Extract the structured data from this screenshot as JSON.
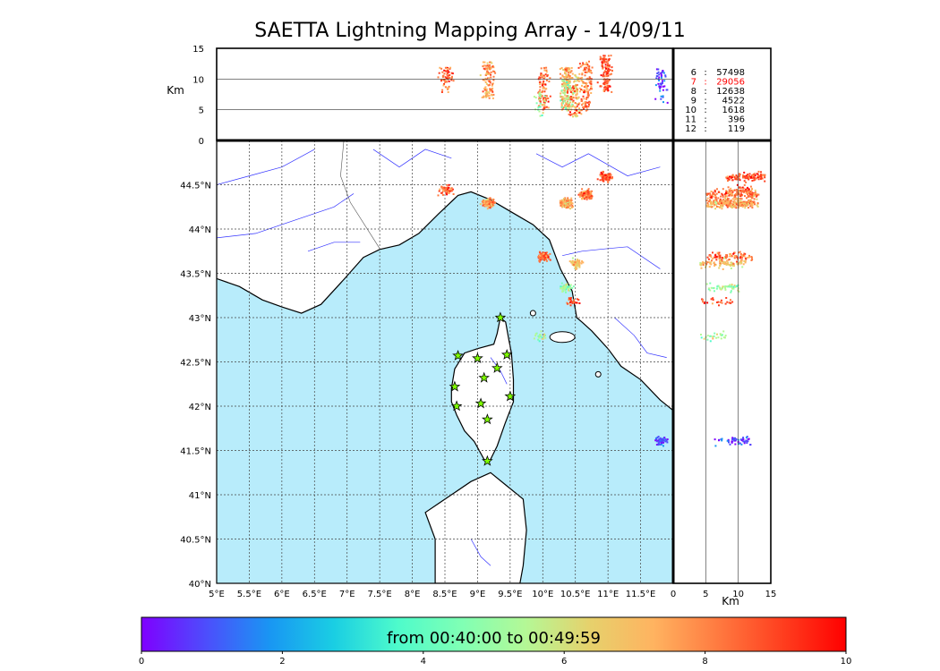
{
  "title": "SAETTA Lightning Mapping Array - 14/09/11",
  "alt_unit": "Km",
  "top_panel": {
    "yticks": [
      "15",
      "10",
      "5",
      "0"
    ],
    "counts": [
      {
        "level": "6",
        "sep": ":",
        "value": "57498",
        "color": "#000000"
      },
      {
        "level": "7",
        "sep": ":",
        "value": "29056",
        "color": "#ff0000"
      },
      {
        "level": "8",
        "sep": ":",
        "value": "12638",
        "color": "#000000"
      },
      {
        "level": "9",
        "sep": ":",
        "value": "4522",
        "color": "#000000"
      },
      {
        "level": "10",
        "sep": ":",
        "value": "1618",
        "color": "#000000"
      },
      {
        "level": "11",
        "sep": ":",
        "value": "396",
        "color": "#000000"
      },
      {
        "level": "12",
        "sep": ":",
        "value": "119",
        "color": "#000000"
      }
    ]
  },
  "map": {
    "lon_labels": [
      "5°E",
      "5.5°E",
      "6°E",
      "6.5°E",
      "7°E",
      "7.5°E",
      "8°E",
      "8.5°E",
      "9°E",
      "9.5°E",
      "10°E",
      "10.5°E",
      "11°E",
      "11.5°E"
    ],
    "lat_labels": [
      "44.5°N",
      "44°N",
      "43.5°N",
      "43°N",
      "42.5°N",
      "42°N",
      "41.5°N",
      "41°N",
      "40.5°N",
      "40°N"
    ],
    "sea_color": "#b8ecfb",
    "land_color": "#ffffff",
    "river_color": "#3333ff",
    "station_color": "#7fff00",
    "stations_lonlat": [
      [
        9.35,
        43.0
      ],
      [
        8.7,
        42.57
      ],
      [
        9.0,
        42.54
      ],
      [
        9.45,
        42.58
      ],
      [
        9.3,
        42.43
      ],
      [
        9.1,
        42.32
      ],
      [
        8.65,
        42.22
      ],
      [
        9.5,
        42.11
      ],
      [
        8.68,
        42.0
      ],
      [
        9.05,
        42.03
      ],
      [
        9.15,
        41.85
      ],
      [
        9.15,
        41.38
      ]
    ]
  },
  "side_panel": {
    "xticks": [
      "0",
      "5",
      "10",
      "15"
    ]
  },
  "colorbar": {
    "label": "from 00:40:00 to 00:49:59",
    "ticks": [
      "0",
      "2",
      "4",
      "6",
      "8",
      "10"
    ],
    "colors": [
      "#7f00ff",
      "#4d4dfc",
      "#1996f3",
      "#1acee3",
      "#4efbcb",
      "#80ffb4",
      "#b4f896",
      "#e6d16c",
      "#ffb360",
      "#ff7a40",
      "#ff3f1f",
      "#ff0000"
    ]
  },
  "chart_data": {
    "type": "scatter",
    "title": "SAETTA Lightning Mapping Array - 14/09/11",
    "xlabel": "",
    "ylabel": "",
    "xlim": [
      5,
      12
    ],
    "ylim": [
      40,
      45
    ],
    "time_range_min": [
      0,
      10
    ],
    "clusters": [
      {
        "lon": 8.5,
        "lat": 44.45,
        "alt": [
          8,
          12
        ],
        "count": 60,
        "time": 8.5
      },
      {
        "lon": 9.15,
        "lat": 44.3,
        "alt": [
          7,
          13
        ],
        "count": 110,
        "time": 7.8
      },
      {
        "lon": 10.35,
        "lat": 44.3,
        "alt": [
          5,
          12
        ],
        "count": 160,
        "time": 7.5
      },
      {
        "lon": 10.65,
        "lat": 44.4,
        "alt": [
          5,
          13
        ],
        "count": 120,
        "time": 8.2
      },
      {
        "lon": 10.95,
        "lat": 44.6,
        "alt": [
          8,
          14
        ],
        "count": 110,
        "time": 8.8
      },
      {
        "lon": 10.0,
        "lat": 43.7,
        "alt": [
          5,
          12
        ],
        "count": 90,
        "time": 8.4
      },
      {
        "lon": 10.5,
        "lat": 43.62,
        "alt": [
          4,
          11
        ],
        "count": 80,
        "time": 7.0
      },
      {
        "lon": 10.35,
        "lat": 43.35,
        "alt": [
          5,
          10
        ],
        "count": 50,
        "time": 5.0
      },
      {
        "lon": 10.45,
        "lat": 43.2,
        "alt": [
          4,
          9
        ],
        "count": 25,
        "time": 9.0
      },
      {
        "lon": 9.95,
        "lat": 42.8,
        "alt": [
          4,
          8
        ],
        "count": 25,
        "time": 5.5
      },
      {
        "lon": 11.8,
        "lat": 41.62,
        "alt": [
          8,
          12
        ],
        "count": 30,
        "time": 0.5
      },
      {
        "lon": 11.8,
        "lat": 41.62,
        "alt": [
          6,
          11
        ],
        "count": 20,
        "time": 0.8
      }
    ]
  }
}
